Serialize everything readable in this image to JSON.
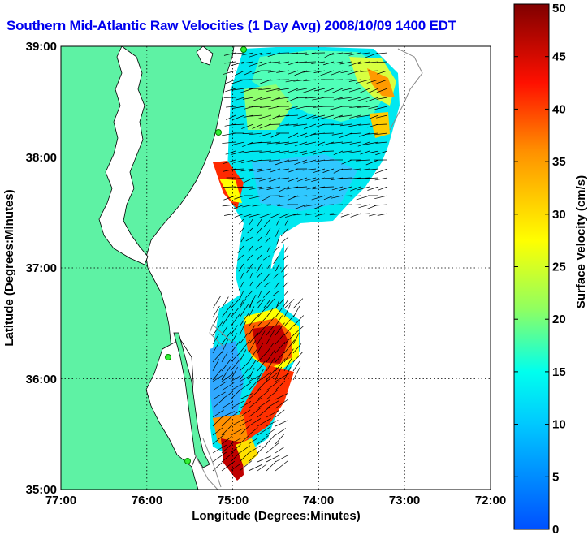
{
  "title": "Southern Mid-Atlantic Raw Velocities (1 Day Avg) 2008/10/09 1400 EDT",
  "map": {
    "xlabel": "Longitude (Degrees:Minutes)",
    "ylabel": "Latitude (Degrees:Minutes)",
    "x_ticks": [
      "77:00",
      "76:00",
      "75:00",
      "74:00",
      "73:00",
      "72:00"
    ],
    "y_ticks": [
      "39:00",
      "38:00",
      "37:00",
      "36:00",
      "35:00"
    ],
    "land_color": "#5ef2a4",
    "ocean_color": "#ffffff"
  },
  "colorbar": {
    "label": "Surface Velocity (cm/s)",
    "ticks": [
      "50",
      "45",
      "40",
      "35",
      "30",
      "25",
      "20",
      "15",
      "10",
      "5",
      "0"
    ],
    "min": 0,
    "max": 50
  }
}
